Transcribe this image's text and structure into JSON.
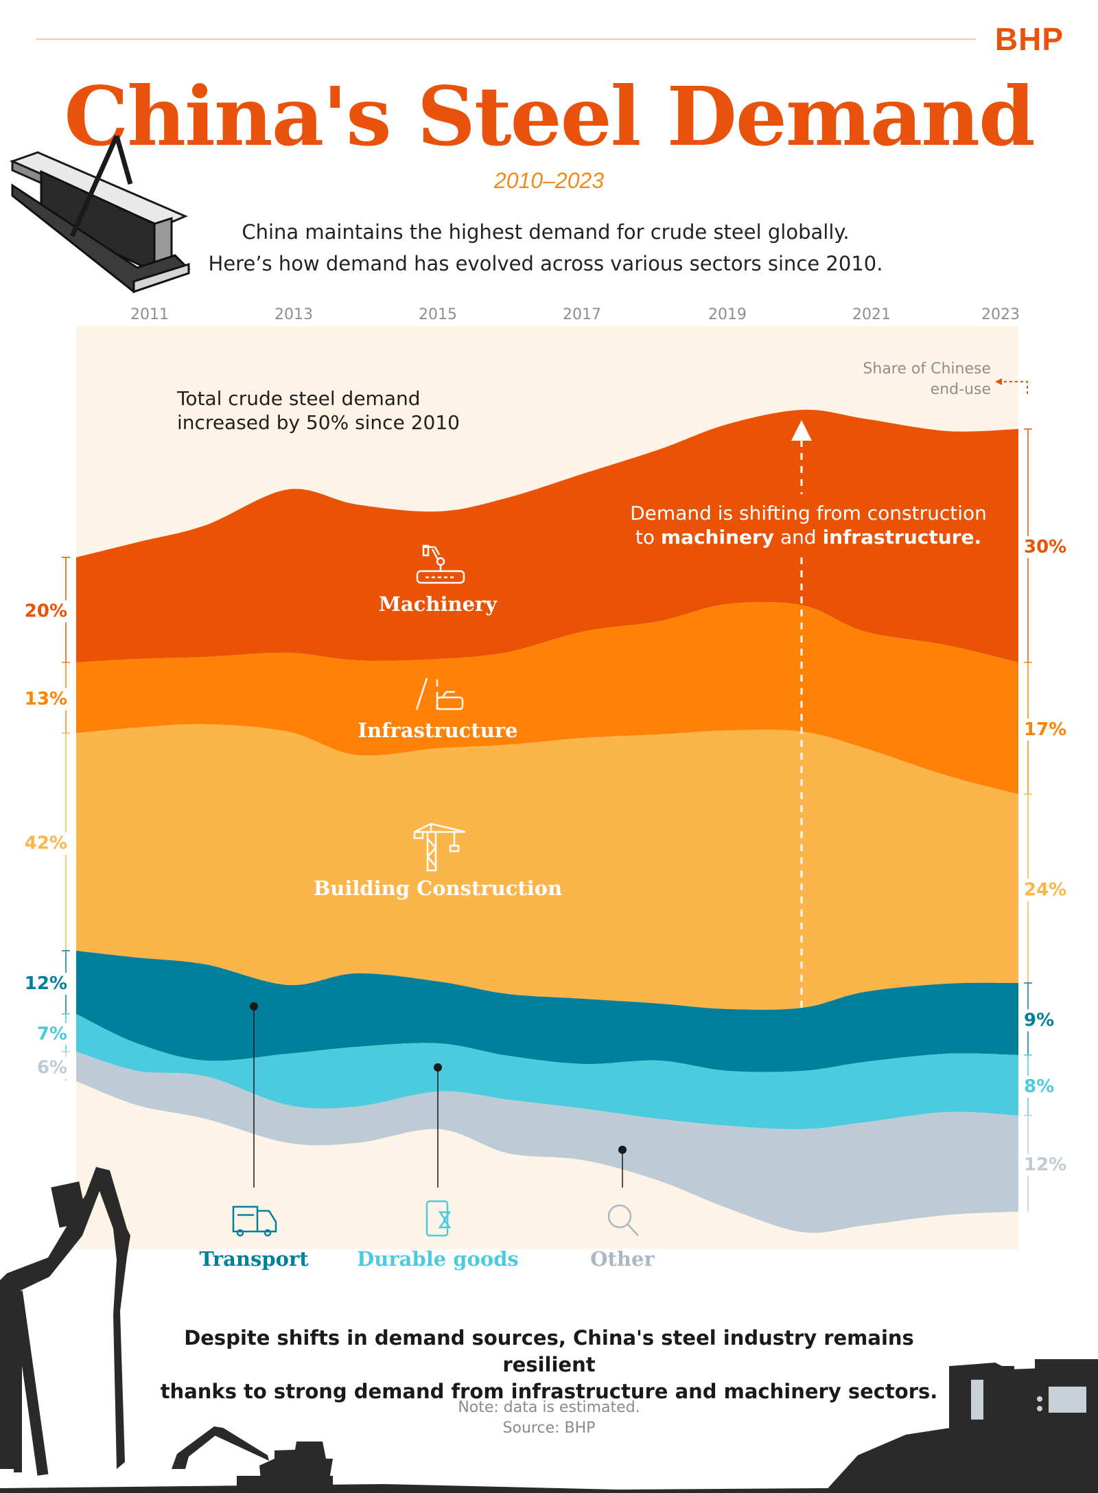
{
  "brand": "BHP",
  "title": "China's Steel Demand",
  "date_range": "2010–2023",
  "intro": {
    "line1": "China maintains the highest demand for crude steel globally.",
    "line2": "Here’s how demand has evolved across various sectors since 2010."
  },
  "chart_data": {
    "type": "area",
    "subtype": "stacked streamgraph",
    "x_tick_labels": [
      "2011",
      "2013",
      "2015",
      "2017",
      "2019",
      "2021",
      "2023"
    ],
    "x_start": 2010,
    "x_end": 2023,
    "unit_note": "Share of Chinese end-use",
    "total_annotation": "Total crude steel demand increased by 50% since 2010",
    "total_growth_pct": 50,
    "shift_annotation": {
      "prefix": "Demand is shifting from construction",
      "to_word": "to",
      "machinery": "machinery",
      "and_word": "and",
      "infrastructure": "infrastructure."
    },
    "series": [
      {
        "name": "Machinery",
        "color": "#ea5205",
        "share_2010": "20%",
        "share_2023": "30%",
        "icon": "robot-arm-icon"
      },
      {
        "name": "Infrastructure",
        "color": "#ff8207",
        "share_2010": "13%",
        "share_2023": "17%",
        "icon": "road-icon"
      },
      {
        "name": "Building Construction",
        "color": "#fbb54a",
        "share_2010": "42%",
        "share_2023": "24%",
        "icon": "crane-icon"
      },
      {
        "name": "Transport",
        "color": "#017f9b",
        "share_2010": "12%",
        "share_2023": "9%",
        "icon": "truck-icon"
      },
      {
        "name": "Durable goods",
        "color": "#4ccbde",
        "share_2010": "7%",
        "share_2023": "8%",
        "icon": "phone-hourglass-icon"
      },
      {
        "name": "Other",
        "color": "#bdcbd6",
        "share_2010": "6%",
        "share_2023": "12%",
        "icon": "magnifier-icon"
      }
    ]
  },
  "conclusion": {
    "line1": "Despite shifts in demand sources, China's steel industry remains resilient",
    "line2": "thanks to strong demand from infrastructure and machinery sectors."
  },
  "footnote": {
    "note": "Note: data is estimated.",
    "source": "Source: BHP"
  }
}
